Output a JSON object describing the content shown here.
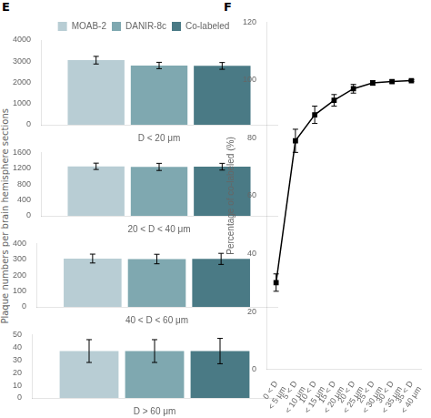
{
  "chart_data": [
    {
      "type": "bar",
      "annotations": [
        "E"
      ],
      "y_label": "Plaque numbers per brain hemisphere sections",
      "x_label": "D < 20 μm",
      "categories": [
        null
      ],
      "legend": "top",
      "grid": false,
      "series": [
        {
          "name": "MOAB-2",
          "color": "#b8cdd4",
          "values": [
            3050
          ],
          "errors": [
            180
          ]
        },
        {
          "name": "DANIR-8c",
          "color": "#7fa8b0",
          "values": [
            2800
          ],
          "errors": [
            150
          ]
        },
        {
          "name": "Co-labeled",
          "color": "#4a7a85",
          "values": [
            2780
          ],
          "errors": [
            160
          ]
        }
      ],
      "ylim": [
        0,
        4000
      ],
      "yticks": [
        0,
        1000,
        2000,
        3000,
        4000
      ]
    },
    {
      "type": "bar",
      "x_label": "20 < D < 40 μm",
      "categories": [
        null
      ],
      "grid": false,
      "series": [
        {
          "name": "MOAB-2",
          "color": "#b8cdd4",
          "values": [
            1250
          ],
          "errors": [
            80
          ]
        },
        {
          "name": "DANIR-8c",
          "color": "#7fa8b0",
          "values": [
            1235
          ],
          "errors": [
            90
          ]
        },
        {
          "name": "Co-labeled",
          "color": "#4a7a85",
          "values": [
            1240
          ],
          "errors": [
            85
          ]
        }
      ],
      "ylim": [
        0,
        1600
      ],
      "yticks": [
        0,
        400,
        800,
        1200,
        1600
      ]
    },
    {
      "type": "bar",
      "x_label": "40 < D < 60 μm",
      "categories": [
        null
      ],
      "grid": false,
      "series": [
        {
          "name": "MOAB-2",
          "color": "#b8cdd4",
          "values": [
            305
          ],
          "errors": [
            28
          ]
        },
        {
          "name": "DANIR-8c",
          "color": "#7fa8b0",
          "values": [
            302
          ],
          "errors": [
            30
          ]
        },
        {
          "name": "Co-labeled",
          "color": "#4a7a85",
          "values": [
            303
          ],
          "errors": [
            35
          ]
        }
      ],
      "ylim": [
        0,
        400
      ],
      "yticks": [
        0,
        100,
        200,
        300,
        400
      ]
    },
    {
      "type": "bar",
      "x_label": "D > 60 μm",
      "categories": [
        null
      ],
      "grid": false,
      "series": [
        {
          "name": "MOAB-2",
          "color": "#b8cdd4",
          "values": [
            37
          ],
          "errors": [
            9
          ]
        },
        {
          "name": "DANIR-8c",
          "color": "#7fa8b0",
          "values": [
            37
          ],
          "errors": [
            9
          ]
        },
        {
          "name": "Co-labeled",
          "color": "#4a7a85",
          "values": [
            37
          ],
          "errors": [
            10
          ]
        }
      ],
      "ylim": [
        0,
        50
      ],
      "yticks": [
        0,
        10,
        20,
        30,
        40,
        50
      ]
    },
    {
      "type": "line",
      "annotations": [
        "F"
      ],
      "y_label": "Percentage of co-labeled (%)",
      "grid": false,
      "categories": [
        "0 < D\n< 5 μm",
        "5 < D\n< 10 μm",
        "10 < D\n< 15 μm",
        "15 < D\n< 20 μm",
        "20 < D\n< 25 μm",
        "25 < D\n< 30 μm",
        "30 < D\n< 35 μm",
        "35 < D\n< 40 μm"
      ],
      "values": [
        30,
        79,
        88,
        93,
        97,
        99,
        99.5,
        99.8
      ],
      "errors": [
        3,
        4,
        3,
        2,
        1.5,
        0.8,
        0.5,
        0.3
      ],
      "color": "black",
      "marker": "square",
      "line_style": "solid",
      "ylim": [
        0,
        120
      ],
      "yticks": [
        0,
        20,
        40,
        60,
        80,
        100,
        120
      ]
    }
  ]
}
